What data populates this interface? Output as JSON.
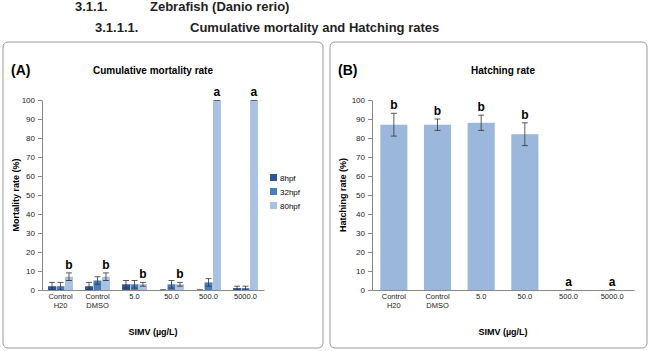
{
  "header": {
    "section_number": "3.1.1.",
    "section_title": "Zebrafish (Danio rerio)",
    "subsection_number": "3.1.1.1.",
    "subsection_title": "Cumulative mortality and Hatching rates"
  },
  "chart_data": [
    {
      "type": "bar",
      "panel": "(A)",
      "title": "Cumulative mortality rate",
      "x_label": "SIMV (µg/L)",
      "y_label": "Mortality rate (%)",
      "categories": [
        "Control H20",
        "Control DMSO",
        "5.0",
        "50.0",
        "500.0",
        "5000.0"
      ],
      "series": [
        {
          "name": "8hpf",
          "color": "#2e5597",
          "values": [
            2,
            2,
            3,
            0,
            0,
            1
          ],
          "errors": [
            2,
            2,
            2,
            0,
            0,
            1
          ]
        },
        {
          "name": "32hpf",
          "color": "#4a7ebb",
          "values": [
            2,
            5,
            3,
            3,
            4,
            1
          ],
          "errors": [
            2,
            2,
            2,
            2,
            2,
            1
          ]
        },
        {
          "name": "80hpf",
          "color": "#a9c1e3",
          "values": [
            7,
            7,
            3,
            3,
            100,
            100
          ],
          "errors": [
            2,
            2,
            1,
            1,
            0,
            0
          ]
        }
      ],
      "ylim": [
        0,
        100
      ],
      "yticks": [
        0,
        10,
        20,
        30,
        40,
        50,
        60,
        70,
        80,
        90,
        100
      ],
      "grid": false,
      "legend": "right",
      "annotations": [
        {
          "text": "b",
          "category": 0,
          "series": 2
        },
        {
          "text": "b",
          "category": 1,
          "series": 2
        },
        {
          "text": "b",
          "category": 2,
          "series": 2
        },
        {
          "text": "b",
          "category": 3,
          "series": 2
        },
        {
          "text": "a",
          "category": 4,
          "series": 2
        },
        {
          "text": "a",
          "category": 5,
          "series": 2
        }
      ]
    },
    {
      "type": "bar",
      "panel": "(B)",
      "title": "Hatching rate",
      "x_label": "SIMV (µg/L)",
      "y_label": "Hatching rate (%)",
      "categories": [
        "Control H20",
        "Control DMSO",
        "5.0",
        "50.0",
        "500.0",
        "5000.0"
      ],
      "values": [
        87,
        87,
        88,
        82,
        0,
        0
      ],
      "errors": [
        6,
        3,
        4,
        6,
        0,
        0
      ],
      "color": "#9bb7dc",
      "ylim": [
        0,
        100
      ],
      "yticks": [
        0,
        10,
        20,
        30,
        40,
        50,
        60,
        70,
        80,
        90,
        100
      ],
      "grid": false,
      "annotations": [
        {
          "text": "b",
          "category": 0
        },
        {
          "text": "b",
          "category": 1
        },
        {
          "text": "b",
          "category": 2
        },
        {
          "text": "b",
          "category": 3
        },
        {
          "text": "a",
          "category": 4
        },
        {
          "text": "a",
          "category": 5
        }
      ]
    }
  ]
}
